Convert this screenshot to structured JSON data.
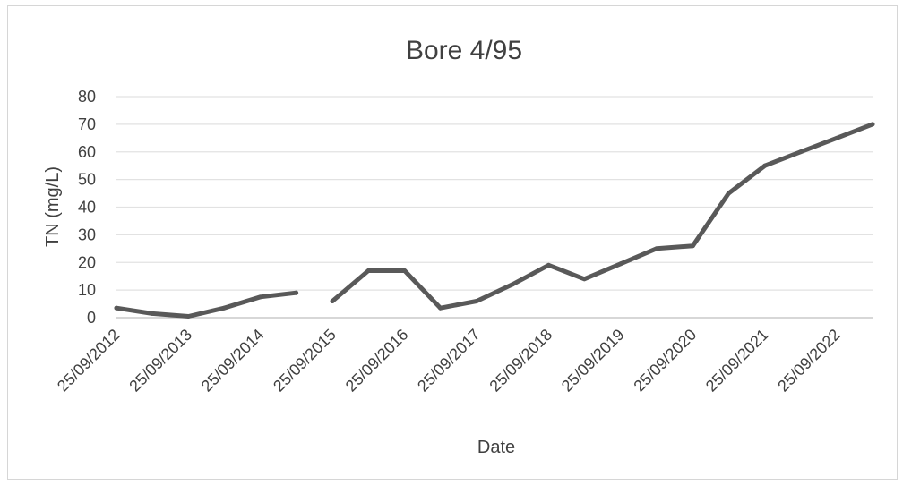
{
  "chart_data": {
    "type": "line",
    "title": "Bore 4/95",
    "xlabel": "Date",
    "ylabel": "TN (mg/L)",
    "ylim": [
      0,
      80
    ],
    "yticks": [
      "0",
      "10",
      "20",
      "30",
      "40",
      "50",
      "60",
      "70",
      "80"
    ],
    "grid": true,
    "legend": "none",
    "line_color": "#595959",
    "x_tick_labels": [
      "25/09/2012",
      "25/09/2013",
      "25/09/2014",
      "25/09/2015",
      "25/09/2016",
      "25/09/2017",
      "25/09/2018",
      "25/09/2019",
      "25/09/2020",
      "25/09/2021",
      "25/09/2022"
    ],
    "x_tick_dates": [
      "2012-09-25",
      "2013-09-25",
      "2014-09-25",
      "2015-09-25",
      "2016-09-25",
      "2017-09-25",
      "2018-09-25",
      "2019-09-25",
      "2020-09-25",
      "2021-09-25",
      "2022-09-25"
    ],
    "series": [
      {
        "segments": [
          [
            {
              "x": "2012-09-25",
              "y": 3.5
            },
            {
              "x": "2013-03-25",
              "y": 1.5
            },
            {
              "x": "2013-09-25",
              "y": 0.5
            },
            {
              "x": "2014-03-25",
              "y": 3.5
            },
            {
              "x": "2014-09-25",
              "y": 7.5
            },
            {
              "x": "2015-03-25",
              "y": 9.0
            }
          ],
          [
            {
              "x": "2015-09-25",
              "y": 6.0
            },
            {
              "x": "2016-03-25",
              "y": 17.0
            },
            {
              "x": "2016-09-25",
              "y": 17.0
            },
            {
              "x": "2017-03-25",
              "y": 3.5
            },
            {
              "x": "2017-09-25",
              "y": 6.0
            },
            {
              "x": "2018-03-25",
              "y": 12.0
            },
            {
              "x": "2018-09-25",
              "y": 19.0
            },
            {
              "x": "2019-03-25",
              "y": 14.0
            },
            {
              "x": "2019-09-25",
              "y": 19.5
            },
            {
              "x": "2020-03-25",
              "y": 25.0
            },
            {
              "x": "2020-09-25",
              "y": 26.0
            },
            {
              "x": "2021-03-25",
              "y": 45.0
            },
            {
              "x": "2021-09-25",
              "y": 55.0
            },
            {
              "x": "2022-03-25",
              "y": 60.0
            },
            {
              "x": "2022-09-25",
              "y": 65.0
            },
            {
              "x": "2023-03-25",
              "y": 70.0
            }
          ]
        ]
      }
    ]
  }
}
